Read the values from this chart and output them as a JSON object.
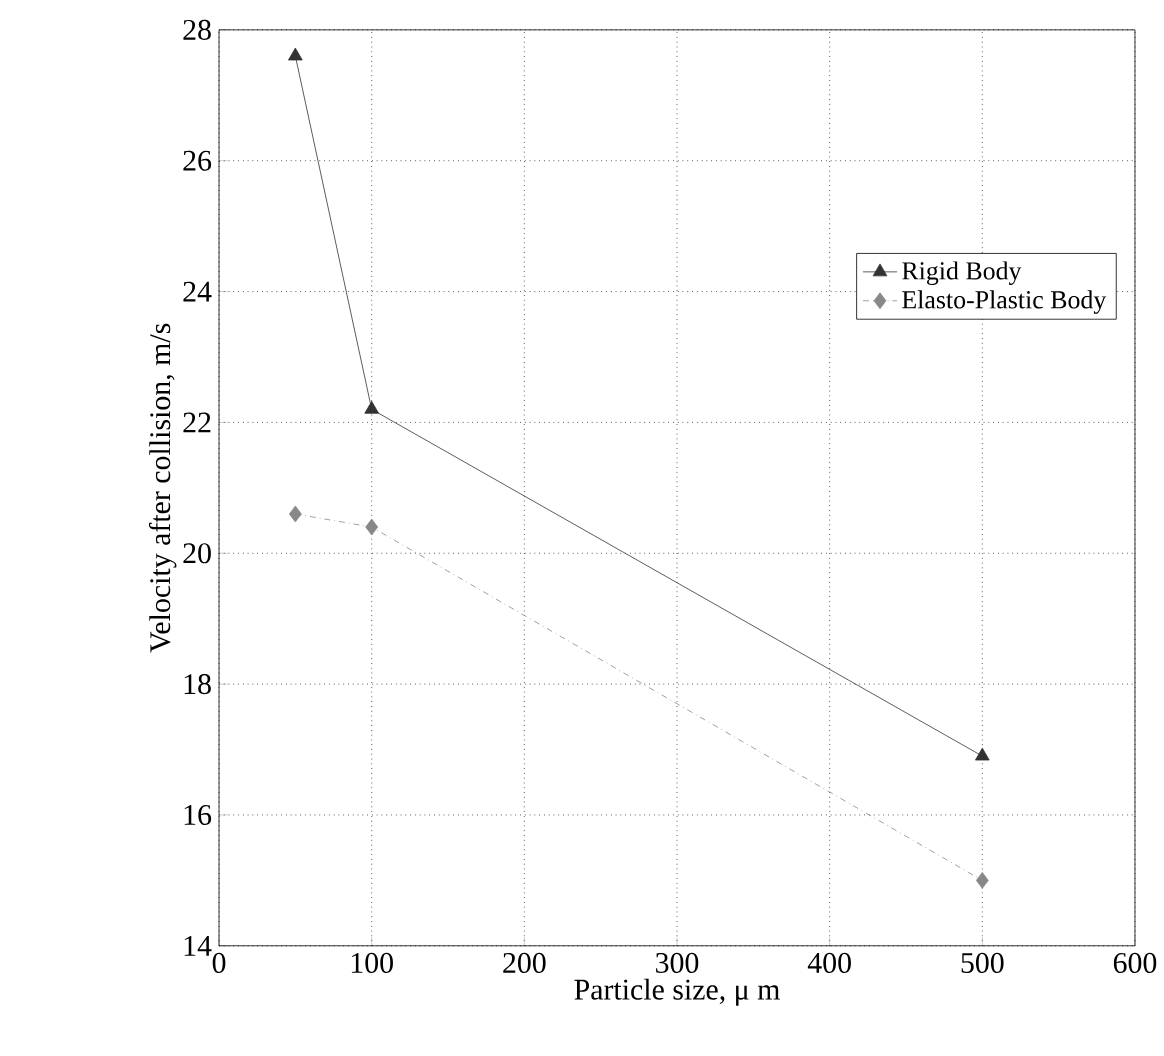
{
  "chart_data": {
    "type": "line",
    "xlabel": "Particle size,  μ m",
    "ylabel": "Velocity after collision, m/s",
    "xlim": [
      0,
      600
    ],
    "ylim": [
      14,
      28
    ],
    "xticks": [
      0,
      100,
      200,
      300,
      400,
      500,
      600
    ],
    "yticks": [
      14,
      16,
      18,
      20,
      22,
      24,
      26,
      28
    ],
    "grid": true,
    "legend": "right",
    "series": [
      {
        "name": "Rigid Body",
        "color": "#333333",
        "x": [
          50,
          100,
          500
        ],
        "values": [
          27.6,
          22.2,
          16.9
        ],
        "marker": "triangle",
        "line_style": "solid"
      },
      {
        "name": "Elasto-Plastic Body",
        "color": "#888888",
        "x": [
          50,
          100,
          500
        ],
        "values": [
          20.6,
          20.4,
          15.0
        ],
        "marker": "diamond",
        "line_style": "dashed"
      }
    ]
  }
}
